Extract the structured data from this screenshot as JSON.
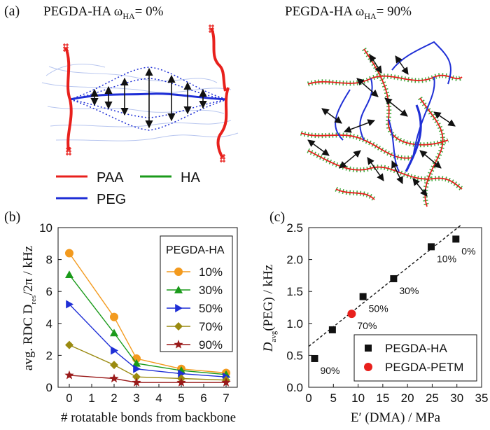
{
  "panel_a": {
    "label": "(a)",
    "left_title": "PEGDA-HA  ω",
    "left_title_sub": "HA",
    "left_title_tail": "= 0%",
    "right_title": "PEGDA-HA  ω",
    "right_title_sub": "HA",
    "right_title_tail": "= 90%",
    "legend": [
      {
        "label": "PAA",
        "color": "#e8201c"
      },
      {
        "label": "HA",
        "color": "#1a9a1a"
      },
      {
        "label": "PEG",
        "color": "#1f2fd6"
      }
    ]
  },
  "colors": {
    "paa": "#e8201c",
    "ha": "#1a9a1a",
    "peg": "#1f2fd6",
    "arrow": "#111111"
  },
  "chart_data": [
    {
      "type": "line",
      "label": "(b)",
      "xlabel": "# rotatable bonds from backbone",
      "ylabel": "avg. RDC D",
      "ylabel_sub": "res",
      "ylabel_tail": "/2π  /  kHz",
      "xlim": [
        -0.5,
        7.5
      ],
      "ylim": [
        0,
        10
      ],
      "xticks": [
        "0",
        "1",
        "2",
        "3",
        "4",
        "5",
        "6",
        "7"
      ],
      "yticks": [
        "0",
        "2",
        "4",
        "6",
        "8",
        "10"
      ],
      "legend_title": "PEGDA-HA",
      "legend_position": "top-right",
      "x": [
        0,
        2,
        3,
        5,
        7
      ],
      "series": [
        {
          "name": "10%",
          "color": "#f39a1e",
          "marker": "circle",
          "values": [
            8.4,
            4.4,
            1.8,
            1.15,
            0.9
          ]
        },
        {
          "name": "30%",
          "color": "#1a9a1a",
          "marker": "triangle-up",
          "values": [
            7.05,
            3.4,
            1.5,
            1.05,
            0.8
          ]
        },
        {
          "name": "50%",
          "color": "#1f2fd6",
          "marker": "triangle-right",
          "values": [
            5.2,
            2.3,
            1.15,
            0.85,
            0.65
          ]
        },
        {
          "name": "70%",
          "color": "#9a8a10",
          "marker": "diamond",
          "values": [
            2.65,
            1.4,
            0.65,
            0.55,
            0.45
          ]
        },
        {
          "name": "90%",
          "color": "#9a1a1a",
          "marker": "star",
          "values": [
            0.75,
            0.55,
            0.3,
            0.3,
            0.3
          ]
        }
      ]
    },
    {
      "type": "scatter",
      "label": "(c)",
      "xlabel": "E′ (DMA)  /  MPa",
      "ylabel": "D",
      "ylabel_sub": "avg",
      "ylabel_tail": "(PEG)  /  kHz",
      "xlim": [
        0,
        35
      ],
      "ylim": [
        0,
        2.5
      ],
      "xticks": [
        "0",
        "5",
        "10",
        "15",
        "20",
        "25",
        "30",
        "35"
      ],
      "yticks": [
        "0.0",
        "0.5",
        "1.0",
        "1.5",
        "2.0",
        "2.5"
      ],
      "legend_position": "bottom-right",
      "series": [
        {
          "name": "PEGDA-HA",
          "color": "#111111",
          "marker": "square",
          "points": [
            {
              "x": 1.2,
              "y": 0.45,
              "label": "90%"
            },
            {
              "x": 4.8,
              "y": 0.9,
              "label": ""
            },
            {
              "x": 11.0,
              "y": 1.42,
              "label": "50%"
            },
            {
              "x": 17.2,
              "y": 1.7,
              "label": "30%"
            },
            {
              "x": 24.8,
              "y": 2.2,
              "label": "10%"
            },
            {
              "x": 29.8,
              "y": 2.32,
              "label": "0%"
            }
          ]
        },
        {
          "name": "PEGDA-PETM",
          "color": "#e8201c",
          "marker": "circle",
          "points": [
            {
              "x": 8.7,
              "y": 1.15,
              "label": "70%"
            }
          ]
        }
      ],
      "fit_line": {
        "x": [
          0,
          31
        ],
        "y": [
          0.64,
          2.55
        ],
        "style": "dashed"
      }
    }
  ]
}
